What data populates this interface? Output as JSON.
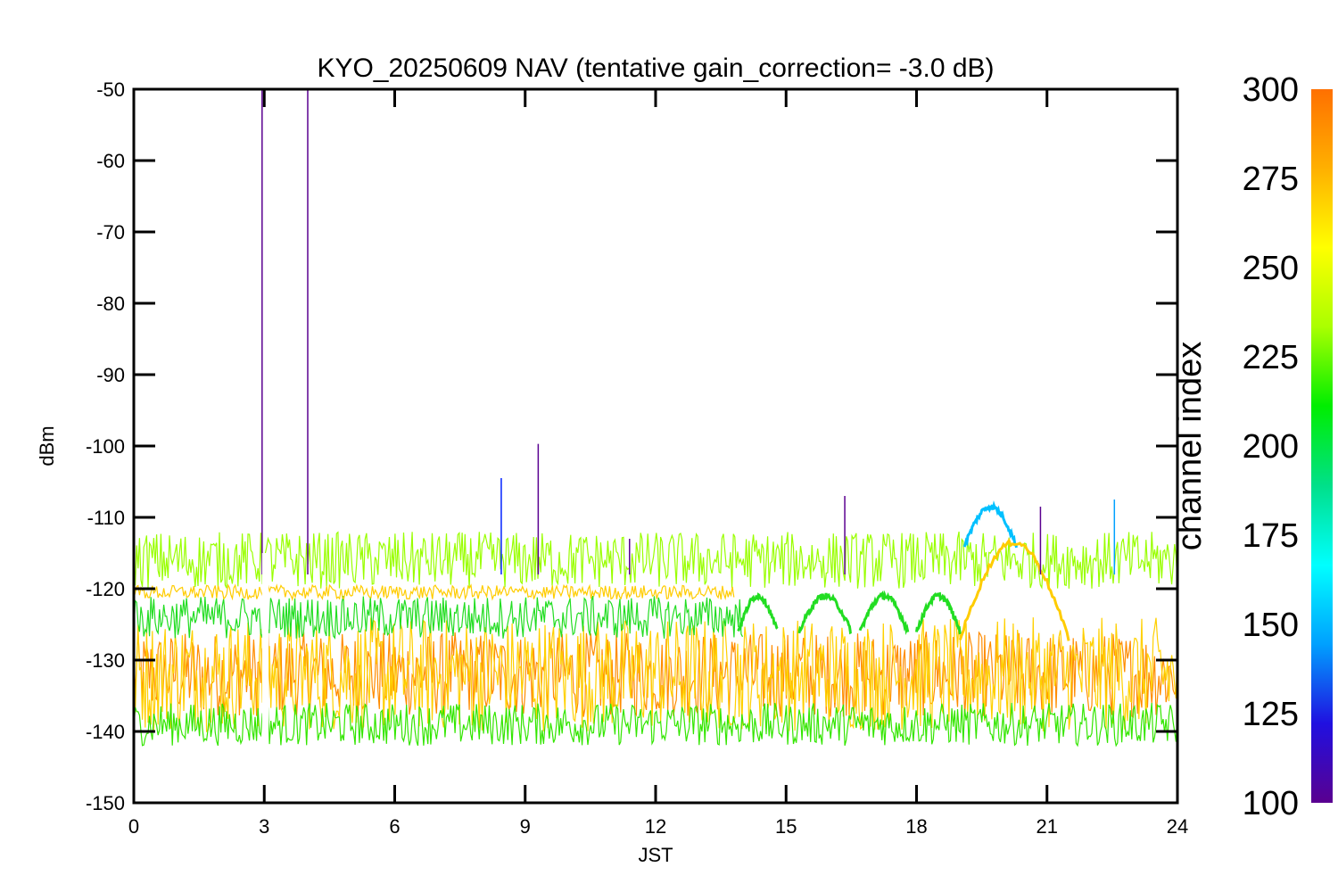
{
  "chart_data": {
    "type": "line",
    "title": "KYO_20250609 NAV (tentative gain_correction= -3.0 dB)",
    "xlabel": "JST",
    "ylabel": "dBm",
    "xlim": [
      0,
      24
    ],
    "ylim": [
      -150,
      -50
    ],
    "xticks": [
      0,
      3,
      6,
      9,
      12,
      15,
      18,
      21,
      24
    ],
    "yticks": [
      -50,
      -60,
      -70,
      -80,
      -90,
      -100,
      -110,
      -120,
      -130,
      -140,
      -150
    ],
    "grid": false,
    "colorbar": {
      "label": "channel index",
      "range": [
        100,
        300
      ],
      "ticks": [
        300,
        275,
        250,
        225,
        200,
        175,
        150,
        125,
        100
      ],
      "colormap": [
        "#5a0090",
        "#2010e0",
        "#00a0ff",
        "#00ffff",
        "#00e08a",
        "#00ee00",
        "#aaff00",
        "#ffff00",
        "#ffb000",
        "#ff7000"
      ]
    },
    "bands": [
      {
        "channel": 280,
        "color": "#ff8c00",
        "y_center": -132,
        "y_spread": 6,
        "x_range": [
          0,
          24
        ]
      },
      {
        "channel": 265,
        "color": "#ffd000",
        "y_center": -132,
        "y_spread": 8,
        "x_range": [
          0,
          24
        ]
      },
      {
        "channel": 240,
        "color": "#33e600",
        "y_center": -139,
        "y_spread": 3,
        "x_range": [
          0,
          24
        ]
      },
      {
        "channel": 255,
        "color": "#99ff00",
        "y_center": -116,
        "y_spread": 4,
        "x_range": [
          0,
          24
        ]
      },
      {
        "channel": 235,
        "color": "#22dd22",
        "y_center": -124,
        "y_spread": 3,
        "x_range": [
          0,
          14
        ]
      },
      {
        "channel": 270,
        "color": "#ffcc00",
        "y_center": -120.5,
        "y_spread": 1,
        "x_range": [
          0,
          13.8
        ]
      }
    ],
    "spikes": [
      {
        "x": 2.95,
        "y_top": -50,
        "color": "#5a0090"
      },
      {
        "x": 4.0,
        "y_top": -50,
        "color": "#5a0090"
      },
      {
        "x": 8.45,
        "y_top": -104.5,
        "color": "#0020ff"
      },
      {
        "x": 9.3,
        "y_top": -99.7,
        "color": "#5a0090"
      },
      {
        "x": 11.4,
        "y_top": -113,
        "color": "#5a0090"
      },
      {
        "x": 16.35,
        "y_top": -107,
        "color": "#5a0090"
      },
      {
        "x": 20.85,
        "y_top": -108.5,
        "color": "#5a0090"
      },
      {
        "x": 22.55,
        "y_top": -107.5,
        "color": "#00a0ff"
      }
    ],
    "arcs": [
      {
        "color": "#00c0ff",
        "x_range": [
          19.1,
          20.3
        ],
        "y_base": -114,
        "y_peak": -108.5
      },
      {
        "color": "#22dd22",
        "x_range": [
          13.9,
          14.8
        ],
        "y_base": -126,
        "y_peak": -121
      },
      {
        "color": "#22dd22",
        "x_range": [
          15.3,
          16.5
        ],
        "y_base": -126,
        "y_peak": -121
      },
      {
        "color": "#22dd22",
        "x_range": [
          16.7,
          17.8
        ],
        "y_base": -126,
        "y_peak": -121
      },
      {
        "color": "#22dd22",
        "x_range": [
          18.0,
          19.0
        ],
        "y_base": -126,
        "y_peak": -121
      },
      {
        "color": "#ffcc00",
        "x_range": [
          19.0,
          21.5
        ],
        "y_base": -127,
        "y_peak": -113.5
      }
    ],
    "gap": {
      "x_range": [
        2.95,
        3.1
      ]
    }
  }
}
